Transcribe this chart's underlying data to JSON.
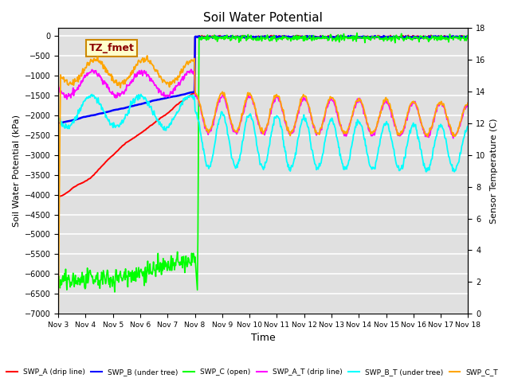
{
  "title": "Soil Water Potential",
  "ylabel_left": "Soil Water Potential (kPa)",
  "ylabel_right": "Sensor Temperature (C)",
  "xlabel": "Time",
  "ylim_left": [
    -7000,
    200
  ],
  "ylim_right": [
    0,
    18
  ],
  "yticks_left": [
    0,
    -500,
    -1000,
    -1500,
    -2000,
    -2500,
    -3000,
    -3500,
    -4000,
    -4500,
    -5000,
    -5500,
    -6000,
    -6500,
    -7000
  ],
  "yticks_right": [
    0,
    2,
    4,
    6,
    8,
    10,
    12,
    14,
    16,
    18
  ],
  "xtick_labels": [
    "Nov 3",
    "Nov 4",
    "Nov 5",
    "Nov 6",
    "Nov 7",
    "Nov 8",
    "Nov 9",
    "Nov 10",
    "Nov 11",
    "Nov 12",
    "Nov 13",
    "Nov 14",
    "Nov 15",
    "Nov 16",
    "Nov 17",
    "Nov 18"
  ],
  "plot_bg_color": "#e0e0e0",
  "annotation_text": "TZ_fmet",
  "annotation_box_color": "#ffffcc",
  "annotation_box_edge": "#cc8800",
  "irrigation_day": 5.0,
  "n_days": 15,
  "n_pts": 720
}
